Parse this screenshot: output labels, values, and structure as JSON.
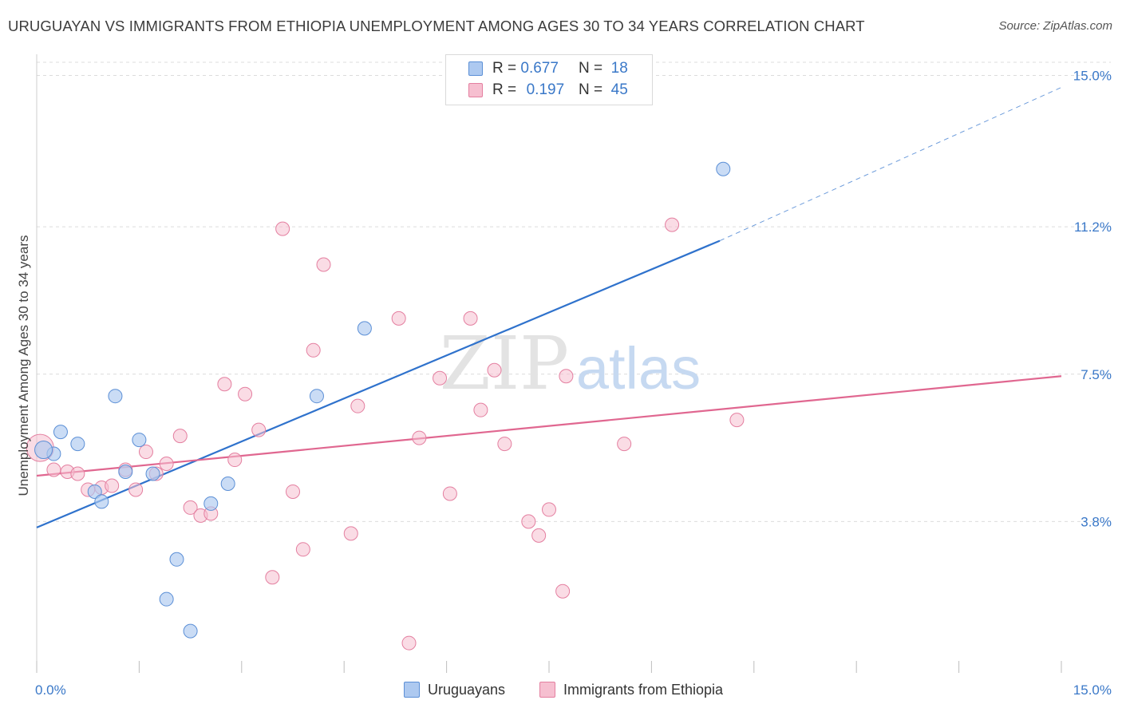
{
  "title": "URUGUAYAN VS IMMIGRANTS FROM ETHIOPIA UNEMPLOYMENT AMONG AGES 30 TO 34 YEARS CORRELATION CHART",
  "source": "Source: ZipAtlas.com",
  "watermark": {
    "zip": "ZIP",
    "atlas": "atlas"
  },
  "colors": {
    "blue_fill": "#adc9f0",
    "blue_stroke": "#5b8fd6",
    "blue_line": "#2f72cc",
    "pink_fill": "#f6bfd0",
    "pink_stroke": "#e47fa0",
    "pink_line": "#e06790",
    "grid": "#dcdcdc",
    "axis_text": "#3a78c8"
  },
  "legend": {
    "rows": [
      {
        "r_label": "R =",
        "r_value": "0.677",
        "n_label": "N =",
        "n_value": "18"
      },
      {
        "r_label": "R =",
        "r_value": "0.197",
        "n_label": "N =",
        "n_value": "45"
      }
    ]
  },
  "bottom_legend": {
    "series1": "Uruguayans",
    "series2": "Immigrants from Ethiopia"
  },
  "chart_data": {
    "type": "scatter",
    "title": "URUGUAYAN VS IMMIGRANTS FROM ETHIOPIA UNEMPLOYMENT AMONG AGES 30 TO 34 YEARS CORRELATION CHART",
    "xlabel": "",
    "ylabel": "Unemployment Among Ages 30 to 34 years",
    "xlim": [
      0,
      15
    ],
    "ylim": [
      0,
      15
    ],
    "x_tick_labels": [
      "0.0%",
      "15.0%"
    ],
    "y_ticks": [
      3.8,
      7.5,
      11.2,
      15.0
    ],
    "y_tick_labels": [
      "3.8%",
      "7.5%",
      "11.2%",
      "15.0%"
    ],
    "grid": true,
    "legend_position": "top-center",
    "series": [
      {
        "name": "Uruguayans",
        "R": 0.677,
        "N": 18,
        "trend": {
          "x0": 0.0,
          "y0": 3.65,
          "x1": 10.0,
          "y1": 10.85,
          "dashed_to_x": 15.0,
          "dashed_to_y": 14.7
        },
        "points": [
          {
            "x": 0.25,
            "y": 5.5
          },
          {
            "x": 0.35,
            "y": 6.05
          },
          {
            "x": 0.6,
            "y": 5.75
          },
          {
            "x": 0.85,
            "y": 4.55
          },
          {
            "x": 0.95,
            "y": 4.3
          },
          {
            "x": 1.15,
            "y": 6.95
          },
          {
            "x": 1.3,
            "y": 5.05
          },
          {
            "x": 1.5,
            "y": 5.85
          },
          {
            "x": 1.7,
            "y": 5.0
          },
          {
            "x": 2.05,
            "y": 2.85
          },
          {
            "x": 2.25,
            "y": 1.05
          },
          {
            "x": 1.9,
            "y": 1.85
          },
          {
            "x": 2.55,
            "y": 4.25
          },
          {
            "x": 2.8,
            "y": 4.75
          },
          {
            "x": 4.1,
            "y": 6.95
          },
          {
            "x": 4.8,
            "y": 8.65
          },
          {
            "x": 10.05,
            "y": 12.65
          },
          {
            "x": 0.1,
            "y": 5.6
          }
        ]
      },
      {
        "name": "Immigrants from Ethiopia",
        "R": 0.197,
        "N": 45,
        "trend": {
          "x0": 0.0,
          "y0": 4.95,
          "x1": 15.0,
          "y1": 7.45
        },
        "points": [
          {
            "x": 0.05,
            "y": 5.65
          },
          {
            "x": 0.25,
            "y": 5.1
          },
          {
            "x": 0.45,
            "y": 5.05
          },
          {
            "x": 0.6,
            "y": 5.0
          },
          {
            "x": 0.75,
            "y": 4.6
          },
          {
            "x": 0.95,
            "y": 4.65
          },
          {
            "x": 1.1,
            "y": 4.7
          },
          {
            "x": 1.3,
            "y": 5.1
          },
          {
            "x": 1.45,
            "y": 4.6
          },
          {
            "x": 1.6,
            "y": 5.55
          },
          {
            "x": 1.75,
            "y": 5.0
          },
          {
            "x": 1.9,
            "y": 5.25
          },
          {
            "x": 2.1,
            "y": 5.95
          },
          {
            "x": 2.25,
            "y": 4.15
          },
          {
            "x": 2.4,
            "y": 3.95
          },
          {
            "x": 2.55,
            "y": 4.0
          },
          {
            "x": 2.75,
            "y": 7.25
          },
          {
            "x": 2.9,
            "y": 5.35
          },
          {
            "x": 3.05,
            "y": 7.0
          },
          {
            "x": 3.25,
            "y": 6.1
          },
          {
            "x": 3.45,
            "y": 2.4
          },
          {
            "x": 3.6,
            "y": 11.15
          },
          {
            "x": 3.75,
            "y": 4.55
          },
          {
            "x": 3.9,
            "y": 3.1
          },
          {
            "x": 4.05,
            "y": 8.1
          },
          {
            "x": 4.2,
            "y": 10.25
          },
          {
            "x": 4.6,
            "y": 3.5
          },
          {
            "x": 4.7,
            "y": 6.7
          },
          {
            "x": 5.3,
            "y": 8.9
          },
          {
            "x": 5.45,
            "y": 0.75
          },
          {
            "x": 5.6,
            "y": 5.9
          },
          {
            "x": 5.9,
            "y": 7.4
          },
          {
            "x": 6.05,
            "y": 4.5
          },
          {
            "x": 6.35,
            "y": 8.9
          },
          {
            "x": 6.5,
            "y": 6.6
          },
          {
            "x": 6.7,
            "y": 7.6
          },
          {
            "x": 6.85,
            "y": 5.75
          },
          {
            "x": 7.2,
            "y": 3.8
          },
          {
            "x": 7.35,
            "y": 3.45
          },
          {
            "x": 7.5,
            "y": 4.1
          },
          {
            "x": 7.7,
            "y": 2.05
          },
          {
            "x": 7.75,
            "y": 7.45
          },
          {
            "x": 8.6,
            "y": 5.75
          },
          {
            "x": 9.3,
            "y": 11.25
          },
          {
            "x": 10.25,
            "y": 6.35
          }
        ]
      }
    ]
  }
}
